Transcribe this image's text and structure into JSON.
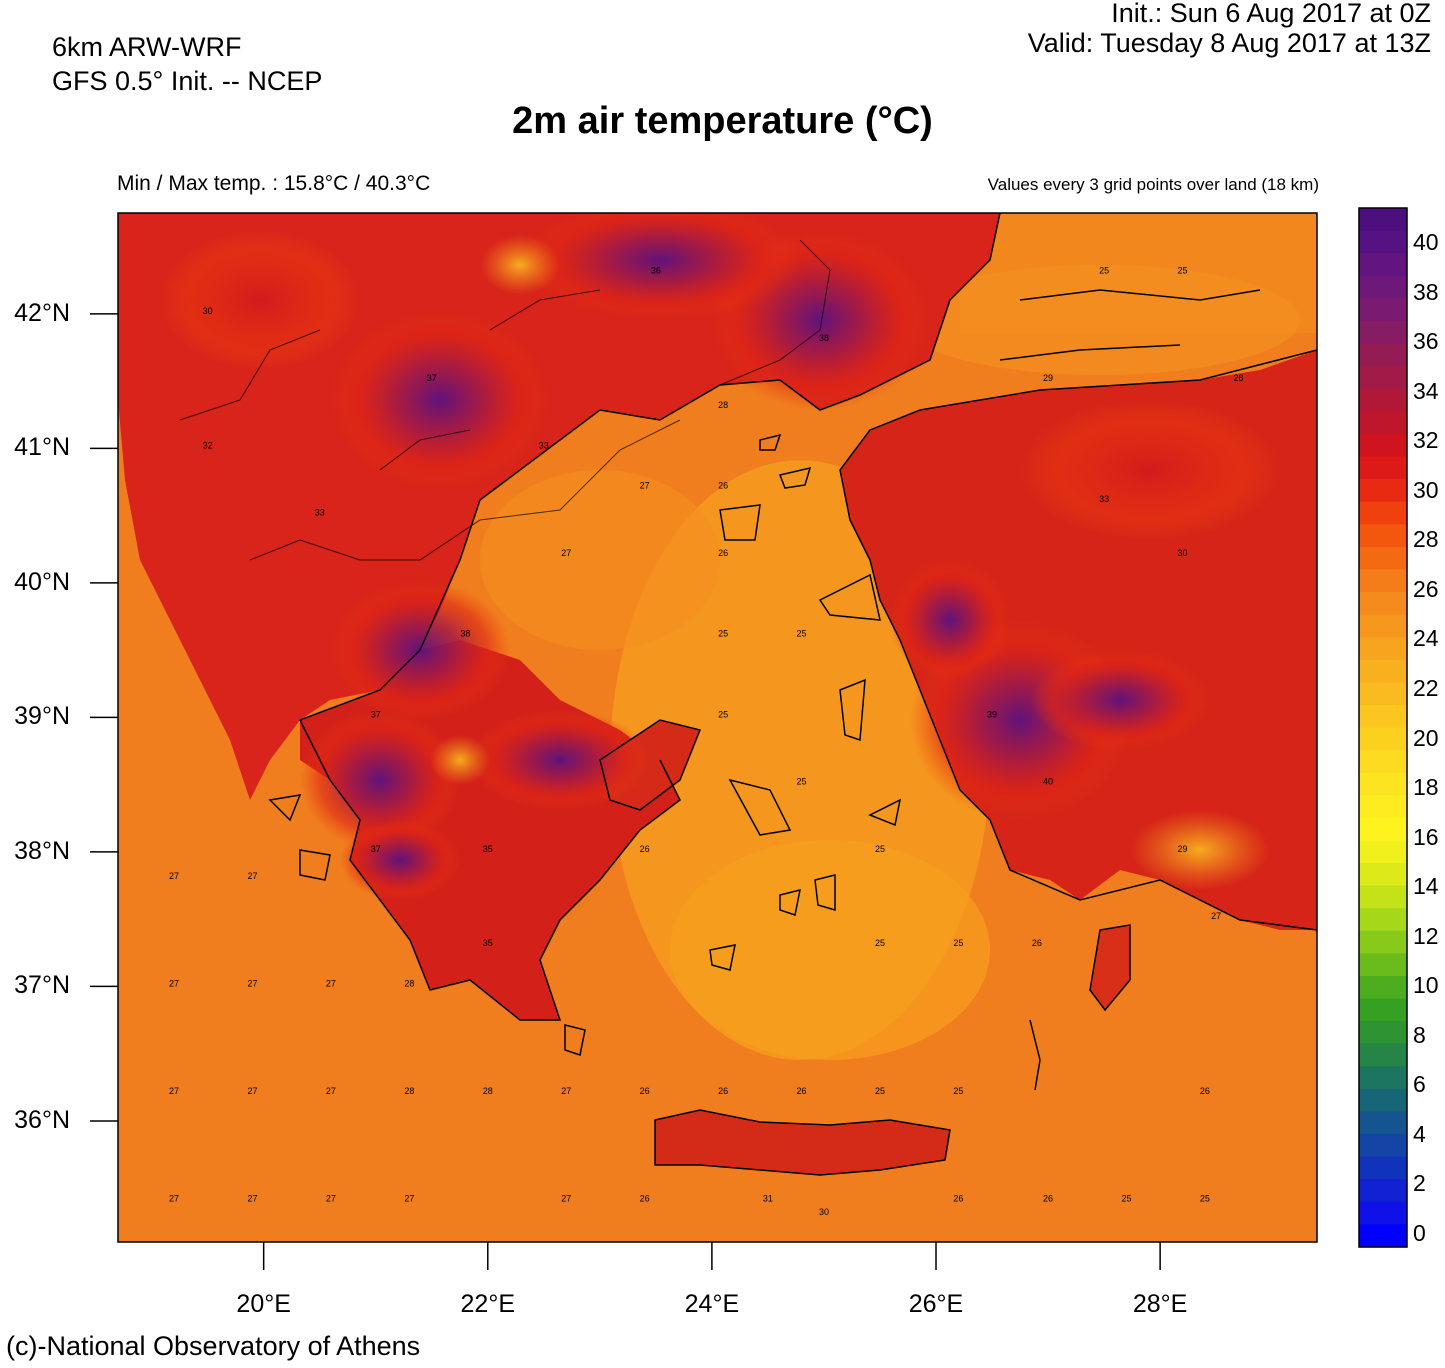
{
  "header": {
    "model_line1": "6km ARW-WRF",
    "model_line2": "GFS 0.5° Init. -- NCEP",
    "init": "Init.:  Sun 6 Aug 2017 at 0Z",
    "valid": "Valid: Tuesday 8 Aug 2017 at 13Z",
    "title": "2m air temperature (°C)",
    "minmax": "Min / Max temp. : 15.8°C / 40.3°C",
    "values_note": "Values every 3 grid points over land (18 km)"
  },
  "footer": {
    "credit": "(c)-National Observatory of Athens"
  },
  "map": {
    "lat_labels": [
      {
        "label": "42°N",
        "lat": 42
      },
      {
        "label": "41°N",
        "lat": 41
      },
      {
        "label": "40°N",
        "lat": 40
      },
      {
        "label": "39°N",
        "lat": 39
      },
      {
        "label": "38°N",
        "lat": 38
      },
      {
        "label": "37°N",
        "lat": 37
      },
      {
        "label": "36°N",
        "lat": 36
      }
    ],
    "lon_labels": [
      {
        "label": "20°E",
        "lon": 20
      },
      {
        "label": "22°E",
        "lon": 22
      },
      {
        "label": "24°E",
        "lon": 24
      },
      {
        "label": "26°E",
        "lon": 26
      },
      {
        "label": "28°E",
        "lon": 28
      }
    ],
    "lon_range": [
      18.7,
      29.4
    ],
    "lat_range": [
      35.1,
      42.75
    ],
    "sea_color": "#f07d1e",
    "sample_values": [
      {
        "lon": 19.2,
        "lat": 37.8,
        "v": "27"
      },
      {
        "lon": 19.9,
        "lat": 37.8,
        "v": "27"
      },
      {
        "lon": 19.2,
        "lat": 37.0,
        "v": "27"
      },
      {
        "lon": 19.9,
        "lat": 37.0,
        "v": "27"
      },
      {
        "lon": 20.6,
        "lat": 37.0,
        "v": "27"
      },
      {
        "lon": 21.3,
        "lat": 37.0,
        "v": "28"
      },
      {
        "lon": 19.2,
        "lat": 36.2,
        "v": "27"
      },
      {
        "lon": 19.9,
        "lat": 36.2,
        "v": "27"
      },
      {
        "lon": 20.6,
        "lat": 36.2,
        "v": "27"
      },
      {
        "lon": 21.3,
        "lat": 36.2,
        "v": "28"
      },
      {
        "lon": 22.0,
        "lat": 36.2,
        "v": "28"
      },
      {
        "lon": 22.7,
        "lat": 36.2,
        "v": "27"
      },
      {
        "lon": 23.4,
        "lat": 36.2,
        "v": "26"
      },
      {
        "lon": 24.1,
        "lat": 36.2,
        "v": "26"
      },
      {
        "lon": 24.8,
        "lat": 36.2,
        "v": "26"
      },
      {
        "lon": 25.5,
        "lat": 36.2,
        "v": "25"
      },
      {
        "lon": 26.2,
        "lat": 36.2,
        "v": "25"
      },
      {
        "lon": 28.4,
        "lat": 36.2,
        "v": "26"
      },
      {
        "lon": 19.2,
        "lat": 35.4,
        "v": "27"
      },
      {
        "lon": 19.9,
        "lat": 35.4,
        "v": "27"
      },
      {
        "lon": 20.6,
        "lat": 35.4,
        "v": "27"
      },
      {
        "lon": 21.3,
        "lat": 35.4,
        "v": "27"
      },
      {
        "lon": 22.7,
        "lat": 35.4,
        "v": "27"
      },
      {
        "lon": 23.4,
        "lat": 35.4,
        "v": "26"
      },
      {
        "lon": 26.2,
        "lat": 35.4,
        "v": "26"
      },
      {
        "lon": 27.0,
        "lat": 35.4,
        "v": "26"
      },
      {
        "lon": 27.7,
        "lat": 35.4,
        "v": "25"
      },
      {
        "lon": 28.4,
        "lat": 35.4,
        "v": "25"
      },
      {
        "lon": 24.1,
        "lat": 39.0,
        "v": "25"
      },
      {
        "lon": 24.8,
        "lat": 38.5,
        "v": "25"
      },
      {
        "lon": 24.1,
        "lat": 39.6,
        "v": "25"
      },
      {
        "lon": 24.8,
        "lat": 39.6,
        "v": "25"
      },
      {
        "lon": 24.1,
        "lat": 41.3,
        "v": "28"
      },
      {
        "lon": 23.4,
        "lat": 40.7,
        "v": "27"
      },
      {
        "lon": 24.1,
        "lat": 40.7,
        "v": "26"
      },
      {
        "lon": 22.7,
        "lat": 40.2,
        "v": "27"
      },
      {
        "lon": 24.1,
        "lat": 40.2,
        "v": "26"
      },
      {
        "lon": 23.4,
        "lat": 38.0,
        "v": "26"
      },
      {
        "lon": 25.5,
        "lat": 38.0,
        "v": "25"
      },
      {
        "lon": 25.5,
        "lat": 37.3,
        "v": "25"
      },
      {
        "lon": 26.2,
        "lat": 37.3,
        "v": "25"
      },
      {
        "lon": 26.9,
        "lat": 37.3,
        "v": "26"
      },
      {
        "lon": 27.5,
        "lat": 42.3,
        "v": "25"
      },
      {
        "lon": 28.2,
        "lat": 42.3,
        "v": "25"
      },
      {
        "lon": 21.5,
        "lat": 41.5,
        "v": "37"
      },
      {
        "lon": 21.8,
        "lat": 39.6,
        "v": "38"
      },
      {
        "lon": 21.0,
        "lat": 39.0,
        "v": "37"
      },
      {
        "lon": 26.5,
        "lat": 39.0,
        "v": "39"
      },
      {
        "lon": 27.0,
        "lat": 38.5,
        "v": "40"
      },
      {
        "lon": 25.0,
        "lat": 41.8,
        "v": "38"
      },
      {
        "lon": 23.5,
        "lat": 42.3,
        "v": "36"
      },
      {
        "lon": 21.0,
        "lat": 38.0,
        "v": "37"
      },
      {
        "lon": 22.0,
        "lat": 38.0,
        "v": "35"
      },
      {
        "lon": 22.0,
        "lat": 37.3,
        "v": "35"
      },
      {
        "lon": 27.5,
        "lat": 40.6,
        "v": "33"
      },
      {
        "lon": 28.2,
        "lat": 40.2,
        "v": "30"
      },
      {
        "lon": 19.5,
        "lat": 41.0,
        "v": "32"
      },
      {
        "lon": 19.5,
        "lat": 42.0,
        "v": "30"
      },
      {
        "lon": 20.5,
        "lat": 40.5,
        "v": "33"
      },
      {
        "lon": 22.5,
        "lat": 41.0,
        "v": "33"
      },
      {
        "lon": 24.5,
        "lat": 35.4,
        "v": "31"
      },
      {
        "lon": 25.0,
        "lat": 35.3,
        "v": "30"
      },
      {
        "lon": 27.0,
        "lat": 41.5,
        "v": "29"
      },
      {
        "lon": 28.7,
        "lat": 41.5,
        "v": "28"
      },
      {
        "lon": 28.2,
        "lat": 38.0,
        "v": "29"
      },
      {
        "lon": 28.5,
        "lat": 37.5,
        "v": "27"
      }
    ]
  },
  "colorbar": {
    "labels": [
      "40",
      "38",
      "36",
      "34",
      "32",
      "30",
      "28",
      "26",
      "24",
      "22",
      "20",
      "18",
      "16",
      "14",
      "12",
      "10",
      "8",
      "6",
      "4",
      "2",
      "0"
    ],
    "colors_top_to_bottom": [
      "#4b0f7e",
      "#561283",
      "#62157f",
      "#6e187a",
      "#7a1a70",
      "#861c64",
      "#951b55",
      "#a21a47",
      "#b11838",
      "#c0162c",
      "#d0141f",
      "#dd1a17",
      "#e82a12",
      "#f0400e",
      "#f3560d",
      "#f36a12",
      "#f47d1a",
      "#f58b1c",
      "#f6981d",
      "#f7a41e",
      "#f8b01f",
      "#f9bb1f",
      "#fac61f",
      "#fbd01f",
      "#fcdb20",
      "#fde420",
      "#feec20",
      "#fff31f",
      "#f2f01c",
      "#dcea1a",
      "#c3e218",
      "#a6d718",
      "#87ca19",
      "#69bc1c",
      "#4dad1e",
      "#36a022",
      "#2e9332",
      "#258446",
      "#1c7560",
      "#176677",
      "#15558f",
      "#1344a6",
      "#1133bc",
      "#1022d2",
      "#0f11e8",
      "#0000ff"
    ]
  }
}
